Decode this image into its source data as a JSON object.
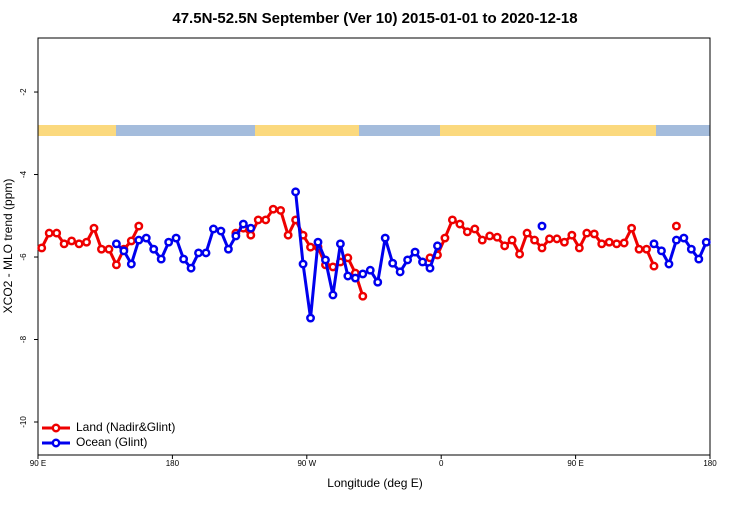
{
  "chart_data": {
    "type": "line",
    "title": "47.5N-52.5N September (Ver 10)   2015-01-01 to 2020-12-18",
    "x_label": "Longitude (deg E)",
    "y_label": "XCO2 - MLO trend (ppm)",
    "x": [
      92.5,
      97.5,
      102.5,
      107.5,
      112.5,
      117.5,
      122.5,
      127.5,
      132.5,
      137.5,
      142.5,
      147.5,
      152.5,
      157.5,
      162.5,
      167.5,
      172.5,
      177.5,
      182.5,
      187.5,
      192.5,
      197.5,
      202.5,
      207.5,
      212.5,
      217.5,
      222.5,
      227.5,
      232.5,
      237.5,
      242.5,
      247.5,
      252.5,
      257.5,
      262.5,
      267.5,
      272.5,
      277.5,
      282.5,
      287.5,
      292.5,
      297.5,
      302.5,
      307.5,
      312.5,
      317.5,
      322.5,
      327.5,
      332.5,
      337.5,
      342.5,
      347.5,
      352.5,
      357.5,
      362.5,
      367.5,
      372.5,
      377.5,
      382.5,
      387.5,
      392.5,
      397.5,
      402.5,
      407.5,
      412.5,
      417.5,
      422.5,
      427.5,
      432.5,
      437.5,
      442.5,
      447.5,
      452.5,
      457.5,
      462.5,
      467.5,
      472.5,
      477.5,
      482.5,
      487.5,
      492.5,
      497.5,
      502.5,
      507.5,
      512.5,
      517.5,
      522.5,
      527.5,
      532.5,
      537.5
    ],
    "series": [
      {
        "name": "Land (Nadir&Glint)",
        "color": "#ee0000",
        "values": [
          -5.78,
          -5.42,
          -5.42,
          -5.68,
          -5.61,
          -5.68,
          -5.64,
          -5.3,
          -5.81,
          -5.81,
          -6.19,
          -5.81,
          -5.61,
          -5.25,
          null,
          null,
          null,
          null,
          null,
          null,
          null,
          null,
          null,
          null,
          null,
          null,
          -5.42,
          -5.3,
          -5.47,
          -5.1,
          -5.1,
          -4.84,
          -4.87,
          -5.47,
          -5.1,
          -5.47,
          -5.76,
          -5.76,
          -6.19,
          -6.24,
          -6.12,
          -6.02,
          -6.39,
          -6.95,
          null,
          null,
          null,
          null,
          null,
          null,
          null,
          null,
          -6.02,
          -5.95,
          -5.54,
          -5.1,
          -5.2,
          -5.39,
          -5.32,
          -5.59,
          -5.49,
          -5.52,
          -5.73,
          -5.59,
          -5.93,
          -5.42,
          -5.59,
          -5.78,
          -5.56,
          -5.56,
          -5.64,
          -5.47,
          -5.78,
          -5.42,
          -5.44,
          -5.68,
          -5.64,
          -5.68,
          -5.66,
          -5.3,
          -5.81,
          -5.81,
          -6.22,
          null,
          null,
          -5.25,
          null,
          null,
          null,
          null
        ]
      },
      {
        "name": "Ocean (Glint)",
        "color": "#0000ee",
        "values": [
          null,
          null,
          null,
          null,
          null,
          null,
          null,
          null,
          null,
          null,
          -5.68,
          -5.85,
          -6.17,
          -5.59,
          -5.54,
          -5.81,
          -6.05,
          -5.64,
          -5.54,
          -6.05,
          -6.27,
          -5.9,
          -5.9,
          -5.32,
          -5.37,
          -5.81,
          -5.49,
          -5.2,
          -5.3,
          null,
          null,
          null,
          null,
          null,
          -4.42,
          -6.17,
          -7.48,
          -5.64,
          -6.07,
          -6.92,
          -5.68,
          -6.46,
          -6.51,
          -6.41,
          -6.32,
          -6.61,
          -5.54,
          -6.15,
          -6.36,
          -6.07,
          -5.88,
          -6.12,
          -6.27,
          -5.73,
          null,
          null,
          null,
          null,
          null,
          null,
          null,
          null,
          null,
          null,
          null,
          null,
          null,
          -5.25,
          null,
          null,
          null,
          null,
          null,
          null,
          null,
          null,
          null,
          null,
          null,
          null,
          null,
          null,
          -5.68,
          -5.85,
          -6.17,
          -5.59,
          -5.54,
          -5.81,
          -6.05,
          -5.64
        ]
      }
    ],
    "xlim": [
      90,
      540
    ],
    "xticks": [
      {
        "value": 90,
        "label": "90 E"
      },
      180,
      {
        "value": 270,
        "label": "90 W"
      },
      {
        "value": 360,
        "label": "0"
      },
      {
        "value": 450,
        "label": "90 E"
      },
      {
        "value": 540,
        "label": "180"
      }
    ],
    "ylim": [
      -10.8,
      -0.69
    ],
    "yticks": [
      -10,
      -8,
      -6,
      -4,
      -2
    ],
    "legend": "bottom-left"
  }
}
